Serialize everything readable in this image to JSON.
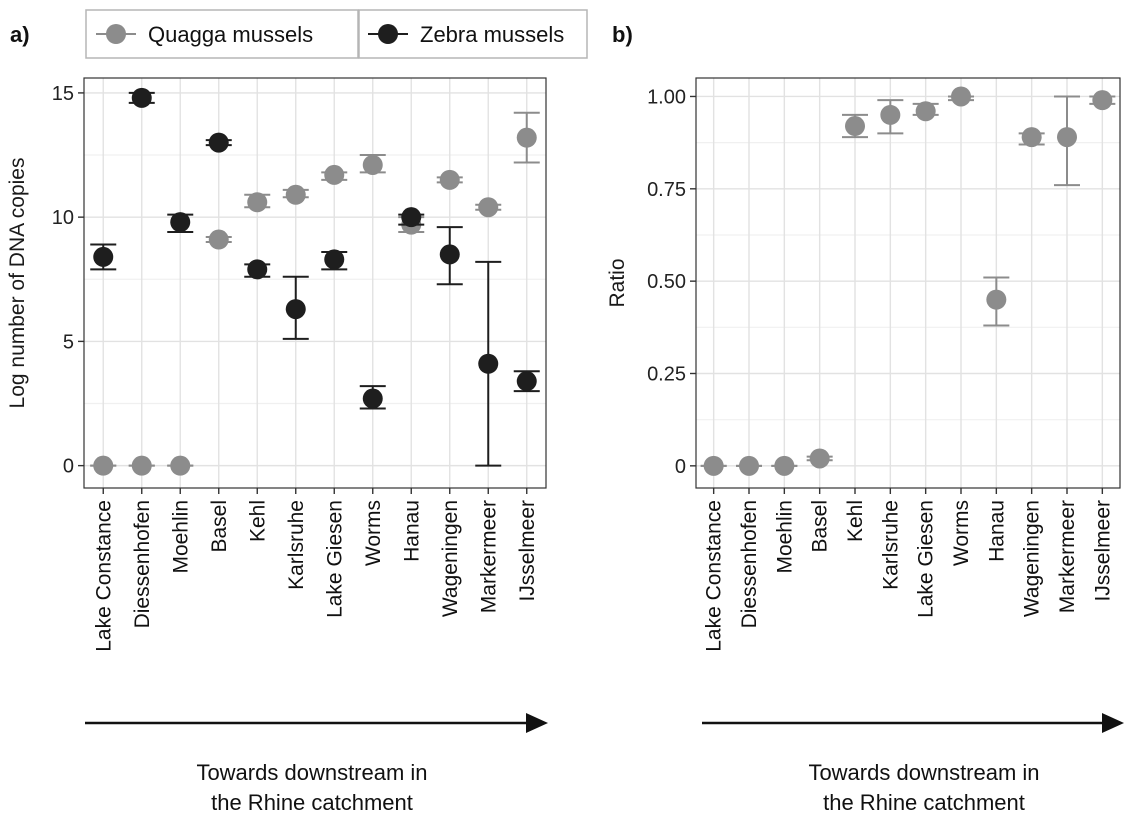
{
  "panels": {
    "a": "a)",
    "b": "b)"
  },
  "legend": {
    "items": [
      {
        "label": "Quagga mussels",
        "color": "#8c8c8c"
      },
      {
        "label": "Zebra mussels",
        "color": "#1e1e1e"
      }
    ]
  },
  "downstream_label": [
    "Towards downstream in",
    "the Rhine catchment"
  ],
  "colors": {
    "quagga": "#8c8c8c",
    "zebra": "#1e1e1e",
    "panel_bg": "#ffffff",
    "grid_major": "#e2e2e2",
    "grid_minor": "#f0f0f0",
    "axis": "#333333"
  },
  "chart_data": [
    {
      "type": "scatter",
      "panel": "a",
      "title": "",
      "xlabel": "",
      "ylabel": "Log number of DNA copies",
      "ylim": [
        -0.9,
        15.6
      ],
      "yticks": [
        0,
        5,
        10,
        15
      ],
      "grid": true,
      "legend_position": "top",
      "categories": [
        "Lake Constance",
        "Diessenhofen",
        "Moehlin",
        "Basel",
        "Kehl",
        "Karlsruhe",
        "Lake Giesen",
        "Worms",
        "Hanau",
        "Wageningen",
        "Markermeer",
        "IJsselmeer"
      ],
      "series": [
        {
          "name": "Quagga mussels",
          "values": [
            0,
            0,
            0,
            9.1,
            10.6,
            10.9,
            11.7,
            12.1,
            9.7,
            11.5,
            10.4,
            13.2
          ],
          "error_low": [
            0,
            0,
            0,
            9.0,
            10.4,
            10.8,
            11.5,
            11.8,
            9.4,
            11.4,
            10.3,
            12.2
          ],
          "error_high": [
            0,
            0,
            0,
            9.2,
            10.9,
            11.1,
            11.8,
            12.5,
            10.0,
            11.6,
            10.5,
            14.2
          ]
        },
        {
          "name": "Zebra mussels",
          "values": [
            8.4,
            14.8,
            9.8,
            13.0,
            7.9,
            6.3,
            8.3,
            2.7,
            10.0,
            8.5,
            4.1,
            3.4
          ],
          "error_low": [
            7.9,
            14.6,
            9.4,
            12.9,
            7.6,
            5.1,
            7.9,
            2.3,
            9.7,
            7.3,
            0,
            3.0
          ],
          "error_high": [
            8.9,
            15.0,
            10.1,
            13.1,
            8.1,
            7.6,
            8.6,
            3.2,
            10.1,
            9.6,
            8.2,
            3.8
          ]
        }
      ]
    },
    {
      "type": "scatter",
      "panel": "b",
      "title": "",
      "xlabel": "",
      "ylabel": "Ratio",
      "ylim": [
        -0.06,
        1.05
      ],
      "yticks": [
        0,
        0.25,
        0.5,
        0.75,
        1.0
      ],
      "ytick_labels": [
        "0",
        "0.25",
        "0.50",
        "0.75",
        "1.00"
      ],
      "grid": true,
      "categories": [
        "Lake Constance",
        "Diessenhofen",
        "Moehlin",
        "Basel",
        "Kehl",
        "Karlsruhe",
        "Lake Giesen",
        "Worms",
        "Hanau",
        "Wageningen",
        "Markermeer",
        "IJsselmeer"
      ],
      "series": [
        {
          "name": "",
          "values": [
            0,
            0,
            0,
            0.02,
            0.92,
            0.95,
            0.96,
            1.0,
            0.45,
            0.89,
            0.89,
            0.99
          ],
          "error_low": [
            0,
            0,
            0,
            0.015,
            0.89,
            0.9,
            0.95,
            0.99,
            0.38,
            0.87,
            0.76,
            0.98
          ],
          "error_high": [
            0,
            0,
            0,
            0.025,
            0.95,
            0.99,
            0.98,
            1.0,
            0.51,
            0.9,
            1.0,
            1.0
          ]
        }
      ]
    }
  ]
}
